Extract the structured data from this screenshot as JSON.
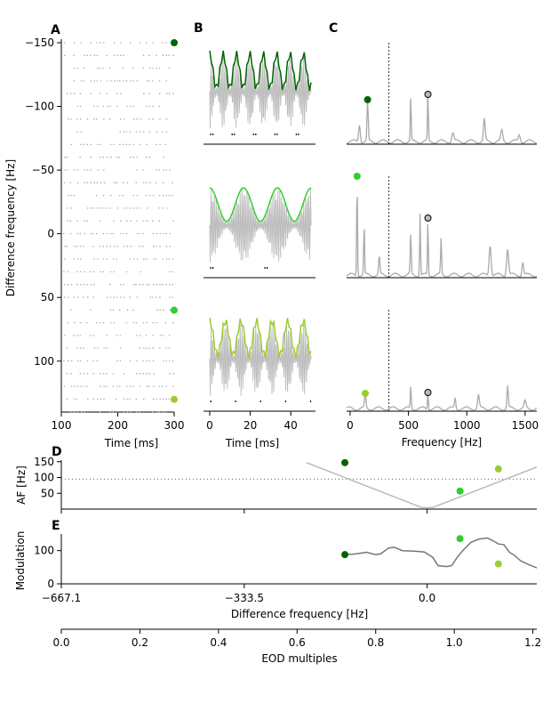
{
  "chart_data": [
    {
      "panel": "A",
      "type": "scatter",
      "xlabel": "Time [ms]",
      "ylabel": "Difference frequency [Hz]",
      "xlim": [
        100,
        300
      ],
      "ylim": [
        -150,
        140
      ],
      "xticks": [
        "100",
        "200",
        "300"
      ],
      "yticks": [
        "−150",
        "−100",
        "−50",
        "0",
        "50",
        "100"
      ],
      "ytick_values": [
        -150,
        -100,
        -50,
        0,
        50,
        100
      ],
      "markers": [
        {
          "y": -150,
          "color": "#006400"
        },
        {
          "y": 60,
          "color": "#32cd32"
        },
        {
          "y": 130,
          "color": "#9acd32"
        }
      ]
    },
    {
      "panel": "B",
      "type": "line",
      "xlabel": "Time [ms]",
      "xlim": [
        0,
        50
      ],
      "xticks": [
        "0",
        "20",
        "40"
      ],
      "xtick_values": [
        0,
        20,
        40
      ],
      "series": [
        {
          "color": "#006400",
          "envelope_period_ms": 6.6
        },
        {
          "color": "#32cd32",
          "envelope_period_ms": 16.7
        },
        {
          "color": "#9acd32",
          "envelope_period_ms": 7.7
        }
      ]
    },
    {
      "panel": "C",
      "type": "line",
      "xlabel": "Frequency [Hz]",
      "xlim": [
        -30,
        1600
      ],
      "xticks": [
        "0",
        "500",
        "1000",
        "1500"
      ],
      "xtick_values": [
        0,
        500,
        1000,
        1500
      ],
      "eod_line_x": 333,
      "peaks": [
        {
          "x": 150,
          "color": "#006400",
          "black_x": 667
        },
        {
          "x": 60,
          "color": "#32cd32",
          "black_x": 667
        },
        {
          "x": 130,
          "color": "#9acd32",
          "black_x": 667
        }
      ]
    },
    {
      "panel": "D",
      "type": "line",
      "ylabel": "AF [Hz]",
      "xlim": [
        -667.1,
        200
      ],
      "ylim": [
        0,
        155
      ],
      "yticks": [
        "50",
        "100",
        "150"
      ],
      "ytick_values": [
        50,
        100,
        150
      ],
      "dotted_y": 95,
      "curve": [
        [
          -220,
          147
        ],
        [
          -10,
          5
        ],
        [
          10,
          5
        ],
        [
          200,
          133
        ]
      ],
      "markers": [
        {
          "x": -150,
          "y": 147,
          "color": "#006400"
        },
        {
          "x": 60,
          "y": 57,
          "color": "#32cd32"
        },
        {
          "x": 130,
          "y": 127,
          "color": "#9acd32"
        }
      ]
    },
    {
      "panel": "E",
      "type": "line",
      "ylabel": "Modulation",
      "xlabel": "Difference frequency [Hz]",
      "xlim": [
        -667.1,
        200
      ],
      "ylim": [
        0,
        150
      ],
      "yticks": [
        "0",
        "100"
      ],
      "ytick_values": [
        0,
        100
      ],
      "xticks": [
        "−667.1",
        "−333.5",
        "0.0"
      ],
      "xtick_values": [
        -667.1,
        -333.5,
        0
      ],
      "curve": [
        [
          -150,
          88
        ],
        [
          -130,
          90
        ],
        [
          -110,
          95
        ],
        [
          -95,
          88
        ],
        [
          -85,
          90
        ],
        [
          -70,
          108
        ],
        [
          -60,
          110
        ],
        [
          -45,
          100
        ],
        [
          -20,
          98
        ],
        [
          -5,
          96
        ],
        [
          10,
          80
        ],
        [
          20,
          55
        ],
        [
          35,
          52
        ],
        [
          45,
          55
        ],
        [
          55,
          80
        ],
        [
          65,
          100
        ],
        [
          80,
          125
        ],
        [
          95,
          135
        ],
        [
          110,
          138
        ],
        [
          120,
          130
        ],
        [
          130,
          120
        ],
        [
          140,
          118
        ],
        [
          150,
          95
        ],
        [
          160,
          85
        ],
        [
          170,
          70
        ],
        [
          185,
          58
        ],
        [
          200,
          48
        ]
      ],
      "markers": [
        {
          "x": -150,
          "y": 88,
          "color": "#006400"
        },
        {
          "x": 60,
          "y": 136,
          "color": "#32cd32"
        },
        {
          "x": 130,
          "y": 60,
          "color": "#9acd32"
        }
      ],
      "secondary_axis": {
        "xlabel": "EOD multiples",
        "xlim": [
          0,
          1.21
        ],
        "xticks": [
          "0.0",
          "0.2",
          "0.4",
          "0.6",
          "0.8",
          "1.0",
          "1.2"
        ],
        "xtick_values": [
          0,
          0.2,
          0.4,
          0.6,
          0.8,
          1.0,
          1.2
        ]
      }
    }
  ]
}
